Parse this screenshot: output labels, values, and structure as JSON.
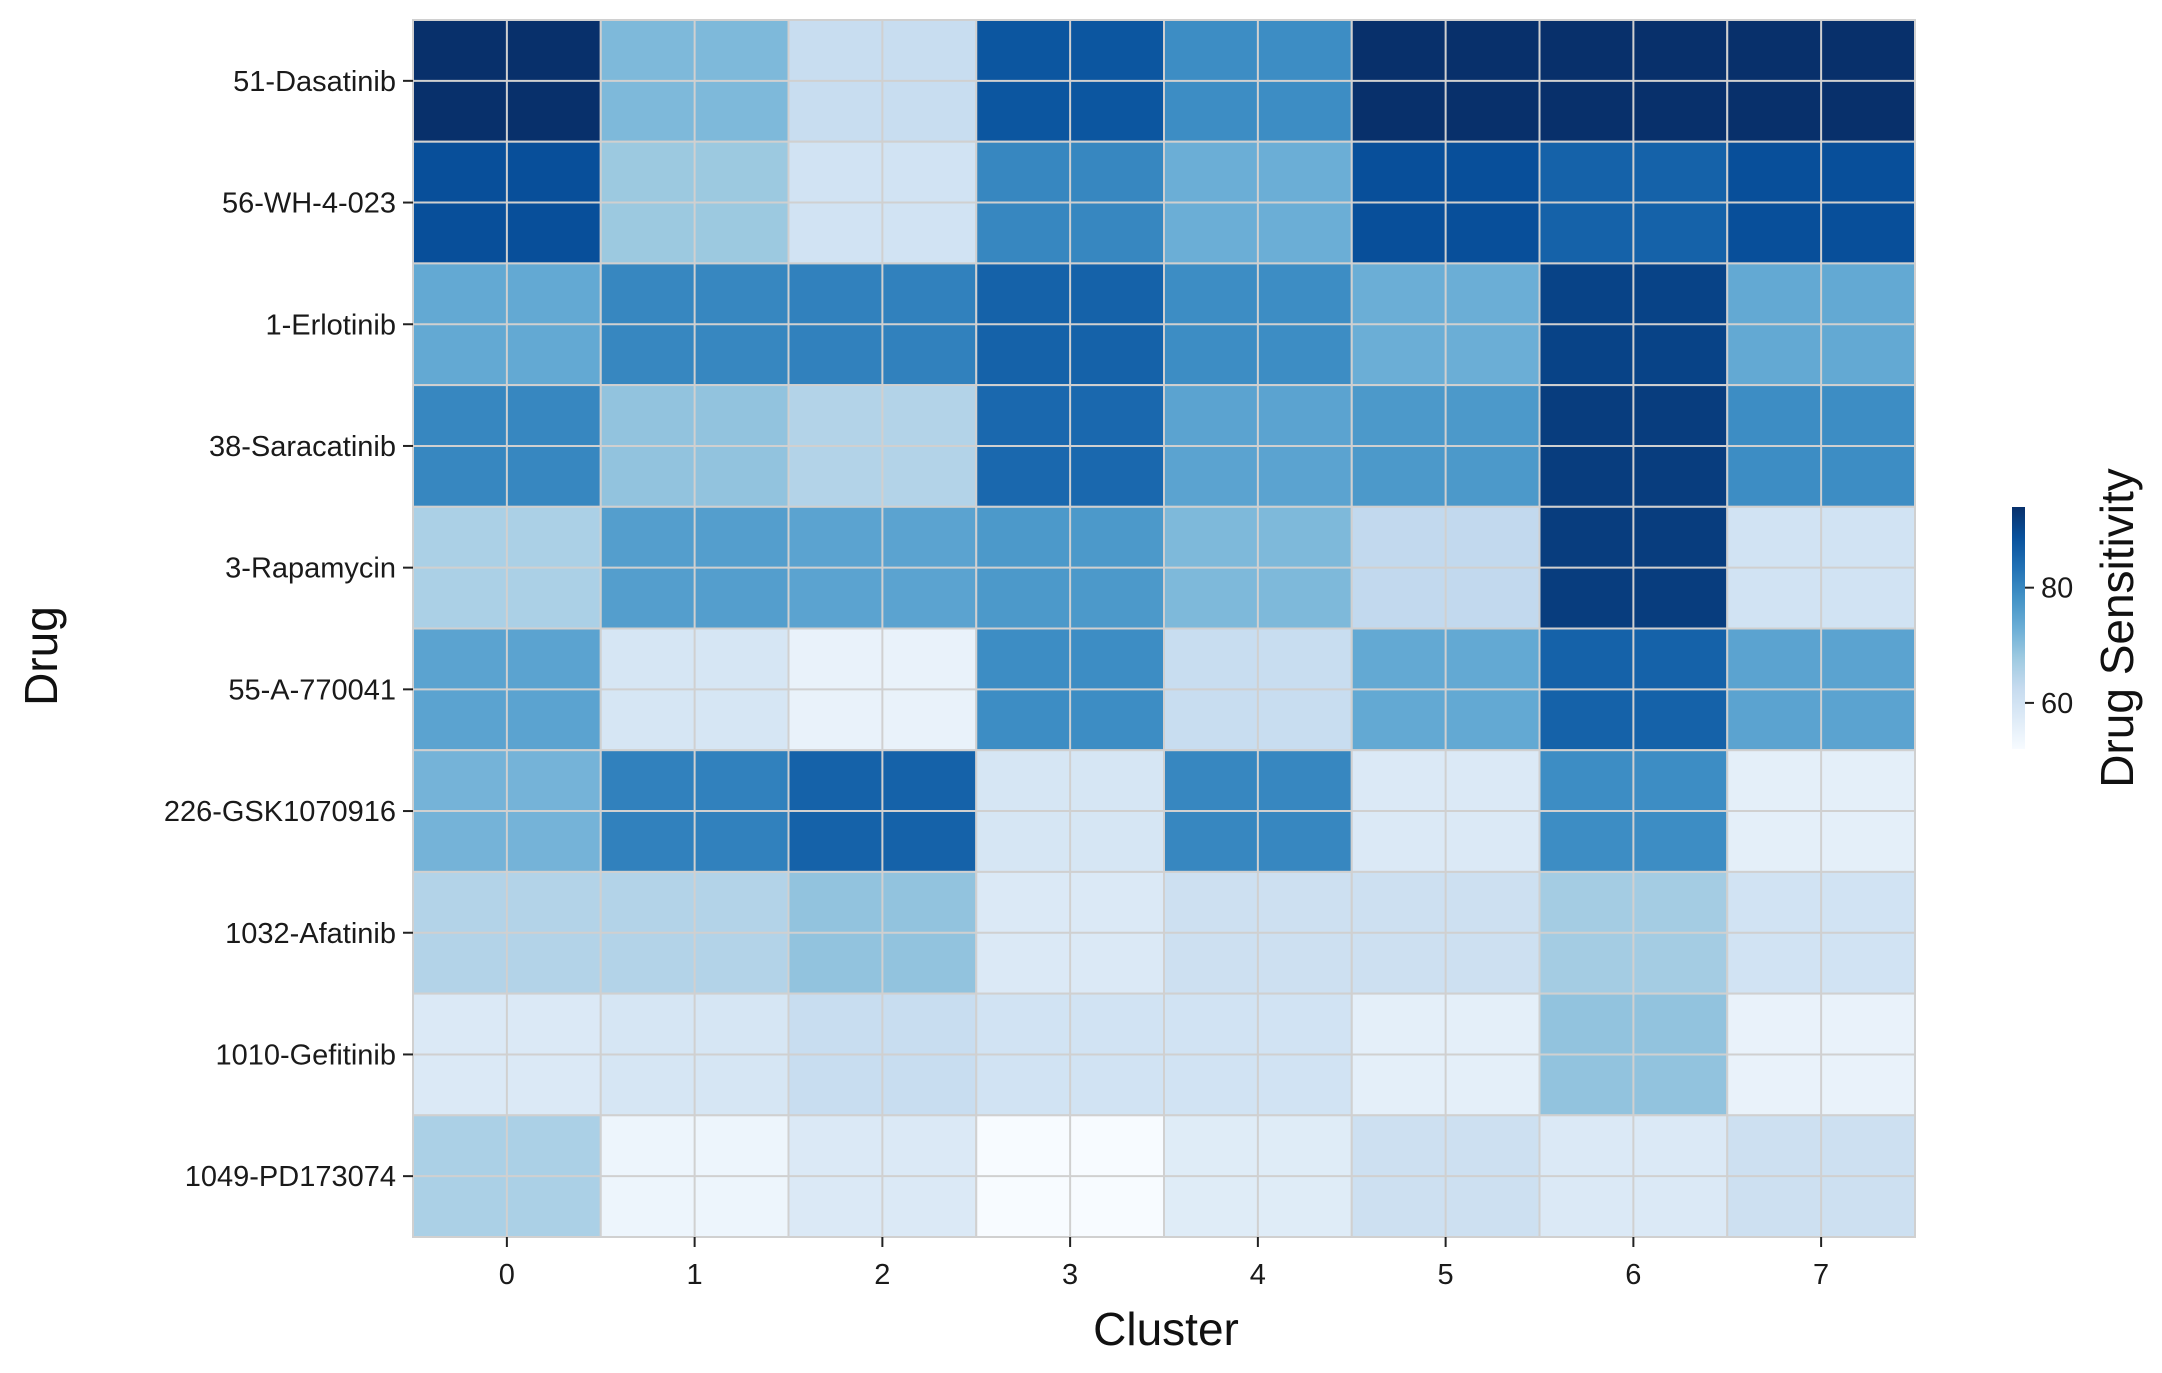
{
  "chart_data": {
    "type": "heatmap",
    "xlabel": "Cluster",
    "ylabel": "Drug",
    "x_categories": [
      "0",
      "1",
      "2",
      "3",
      "4",
      "5",
      "6",
      "7"
    ],
    "y_categories": [
      "51-Dasatinib",
      "56-WH-4-023",
      "1-Erlotinib",
      "38-Saracatinib",
      "3-Rapamycin",
      "55-A-770041",
      "226-GSK1070916",
      "1032-Afatinib",
      "1010-Gefitinib",
      "1049-PD173074"
    ],
    "values": [
      [
        96,
        71,
        62,
        88,
        79,
        96,
        96,
        96
      ],
      [
        89,
        68,
        60,
        80,
        73,
        89,
        86,
        89
      ],
      [
        74,
        80,
        81,
        86,
        79,
        73,
        91,
        74
      ],
      [
        80,
        69,
        65,
        85,
        75,
        77,
        92,
        79
      ],
      [
        66,
        76,
        75,
        77,
        71,
        63,
        92,
        60
      ],
      [
        75,
        59,
        55,
        79,
        62,
        74,
        86,
        75
      ],
      [
        72,
        81,
        86,
        59,
        80,
        58,
        79,
        56
      ],
      [
        65,
        65,
        69,
        58,
        61,
        61,
        67,
        60
      ],
      [
        58,
        59,
        62,
        60,
        60,
        56,
        69,
        55
      ],
      [
        66,
        54,
        58,
        52,
        57,
        61,
        58,
        61
      ]
    ],
    "colorbar": {
      "label": "Drug Sensitivity",
      "ticks": [
        60,
        80
      ],
      "range": [
        52,
        94
      ]
    },
    "colormap": "Blues",
    "grid": true
  }
}
